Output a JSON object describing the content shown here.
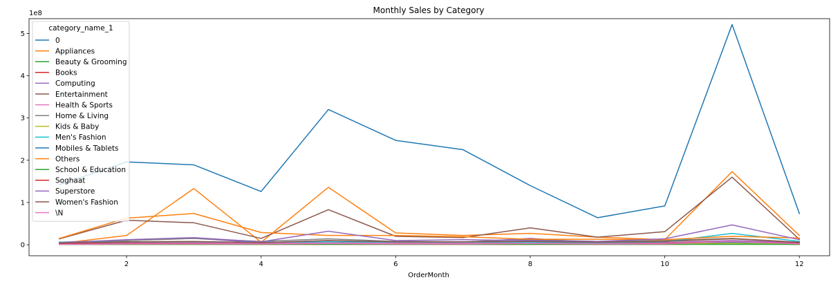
{
  "chart_data": {
    "type": "line",
    "title": "Monthly Sales by Category",
    "xlabel": "OrderMonth",
    "ylabel": "",
    "y_offset_text": "1e8",
    "y_scale": 100000000,
    "xlim": [
      0.55,
      12.45
    ],
    "ylim": [
      -0.26,
      5.35
    ],
    "x_ticks": [
      2,
      4,
      6,
      8,
      10,
      12
    ],
    "y_ticks": [
      0,
      1,
      2,
      3,
      4,
      5
    ],
    "grid": false,
    "legend": {
      "title": "category_name_1",
      "placement": "upper-left"
    },
    "x": [
      1,
      2,
      3,
      4,
      5,
      6,
      7,
      8,
      9,
      10,
      11,
      12
    ],
    "series": [
      {
        "name": "0",
        "color": "#1f77b4",
        "values": [
          0.03,
          0.05,
          0.05,
          0.03,
          0.06,
          0.05,
          0.05,
          0.05,
          0.05,
          0.04,
          0.06,
          0.03
        ]
      },
      {
        "name": "Appliances",
        "color": "#ff7f0e",
        "values": [
          0.03,
          0.22,
          1.33,
          0.06,
          1.36,
          0.28,
          0.22,
          0.27,
          0.18,
          0.12,
          1.73,
          0.22
        ]
      },
      {
        "name": "Beauty & Grooming",
        "color": "#2ca02c",
        "values": [
          0.01,
          0.02,
          0.02,
          0.02,
          0.03,
          0.02,
          0.02,
          0.02,
          0.02,
          0.02,
          0.03,
          0.01
        ]
      },
      {
        "name": "Books",
        "color": "#d62728",
        "values": [
          0.01,
          0.01,
          0.01,
          0.01,
          0.01,
          0.01,
          0.01,
          0.01,
          0.01,
          0.01,
          0.02,
          0.01
        ]
      },
      {
        "name": "Computing",
        "color": "#9467bd",
        "values": [
          0.06,
          0.1,
          0.15,
          0.05,
          0.1,
          0.05,
          0.06,
          0.15,
          0.05,
          0.05,
          0.1,
          0.05
        ]
      },
      {
        "name": "Entertainment",
        "color": "#8c564b",
        "values": [
          0.14,
          0.58,
          0.52,
          0.15,
          0.83,
          0.2,
          0.17,
          0.4,
          0.18,
          0.31,
          1.6,
          0.13
        ]
      },
      {
        "name": "Health & Sports",
        "color": "#e377c2",
        "values": [
          0.02,
          0.04,
          0.05,
          0.03,
          0.05,
          0.04,
          0.04,
          0.05,
          0.03,
          0.04,
          0.08,
          0.03
        ]
      },
      {
        "name": "Home & Living",
        "color": "#7f7f7f",
        "values": [
          0.06,
          0.1,
          0.15,
          0.08,
          0.14,
          0.08,
          0.07,
          0.12,
          0.08,
          0.1,
          0.15,
          0.06
        ]
      },
      {
        "name": "Kids & Baby",
        "color": "#bcbd22",
        "values": [
          0.01,
          0.02,
          0.02,
          0.01,
          0.02,
          0.02,
          0.02,
          0.02,
          0.02,
          0.02,
          0.03,
          0.01
        ]
      },
      {
        "name": "Men's Fashion",
        "color": "#17becf",
        "values": [
          0.06,
          0.07,
          0.07,
          0.06,
          0.07,
          0.06,
          0.06,
          0.06,
          0.05,
          0.07,
          0.27,
          0.08
        ]
      },
      {
        "name": "Mobiles & Tablets",
        "color": "#1f77b4",
        "values": [
          1.42,
          1.96,
          1.89,
          1.26,
          3.2,
          2.47,
          2.25,
          1.4,
          0.64,
          0.92,
          5.21,
          0.74
        ]
      },
      {
        "name": "Others",
        "color": "#ff7f0e",
        "values": [
          0.15,
          0.63,
          0.74,
          0.29,
          0.22,
          0.22,
          0.19,
          0.13,
          0.13,
          0.12,
          0.2,
          0.16
        ]
      },
      {
        "name": "School & Education",
        "color": "#2ca02c",
        "values": [
          0.01,
          0.01,
          0.01,
          0.01,
          0.01,
          0.01,
          0.01,
          0.01,
          0.01,
          0.01,
          0.01,
          0.01
        ]
      },
      {
        "name": "Soghaat",
        "color": "#d62728",
        "values": [
          0.02,
          0.03,
          0.03,
          0.02,
          0.03,
          0.02,
          0.02,
          0.03,
          0.02,
          0.03,
          0.08,
          0.03
        ]
      },
      {
        "name": "Superstore",
        "color": "#9467bd",
        "values": [
          0.05,
          0.12,
          0.17,
          0.07,
          0.32,
          0.1,
          0.12,
          0.1,
          0.08,
          0.14,
          0.47,
          0.12
        ]
      },
      {
        "name": "Women's Fashion",
        "color": "#8c564b",
        "values": [
          0.04,
          0.07,
          0.08,
          0.05,
          0.1,
          0.07,
          0.07,
          0.08,
          0.06,
          0.08,
          0.14,
          0.06
        ]
      },
      {
        "name": "\\N",
        "color": "#e377c2",
        "values": [
          0.01,
          0.02,
          0.02,
          0.02,
          0.03,
          0.02,
          0.02,
          0.03,
          0.02,
          0.02,
          0.08,
          0.02
        ]
      }
    ]
  }
}
